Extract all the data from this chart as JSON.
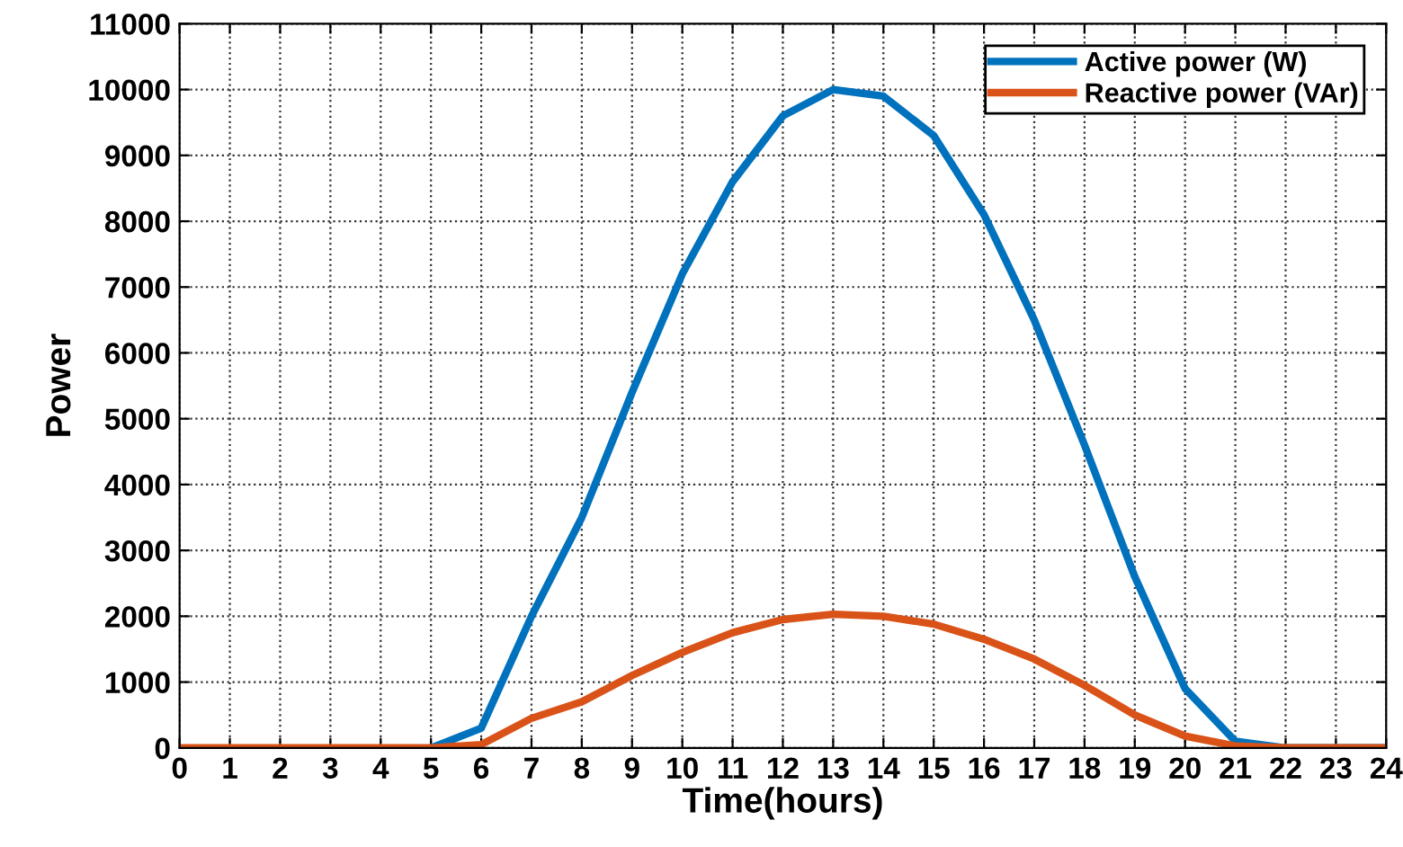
{
  "chart_data": {
    "type": "line",
    "xlabel": "Time(hours)",
    "ylabel": "Power",
    "x": [
      0,
      1,
      2,
      3,
      4,
      5,
      6,
      7,
      8,
      9,
      10,
      11,
      12,
      13,
      14,
      15,
      16,
      17,
      18,
      19,
      20,
      21,
      22,
      23,
      24
    ],
    "series": [
      {
        "name": "Active power (W)",
        "color": "#0072bd",
        "values": [
          null,
          null,
          null,
          null,
          null,
          0,
          300,
          2000,
          3500,
          5400,
          7200,
          8600,
          9600,
          10000,
          9900,
          9300,
          8100,
          6500,
          4600,
          2600,
          900,
          100,
          0,
          0,
          0
        ]
      },
      {
        "name": "Reactive power (VAr)",
        "color": "#d95319",
        "values": [
          0,
          0,
          0,
          0,
          0,
          0,
          50,
          450,
          700,
          1100,
          1450,
          1750,
          1950,
          2030,
          2000,
          1880,
          1650,
          1350,
          950,
          500,
          180,
          30,
          0,
          0,
          0
        ]
      }
    ],
    "xlim": [
      0,
      24
    ],
    "xticks": [
      0,
      1,
      2,
      3,
      4,
      5,
      6,
      7,
      8,
      9,
      10,
      11,
      12,
      13,
      14,
      15,
      16,
      17,
      18,
      19,
      20,
      21,
      22,
      23,
      24
    ],
    "ylim": [
      0,
      11000
    ],
    "yticks": [
      0,
      1000,
      2000,
      3000,
      4000,
      5000,
      6000,
      7000,
      8000,
      9000,
      10000,
      11000
    ],
    "grid": true,
    "legend": "top right",
    "line_style": "solid",
    "marker": "none"
  }
}
